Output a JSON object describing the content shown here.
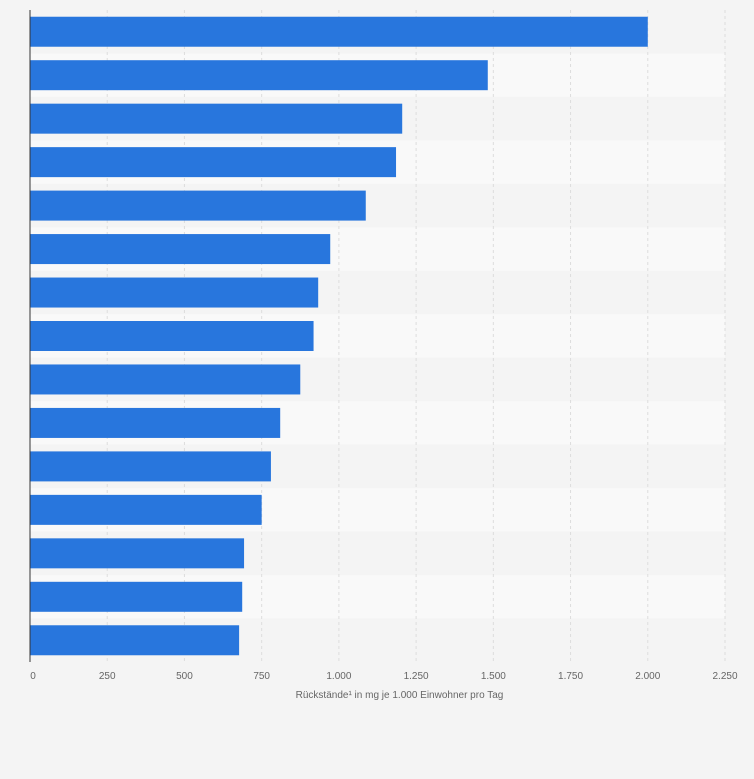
{
  "colors": {
    "bar": "#2876dd",
    "background": "#f4f4f4",
    "row_light": "#f9f9f9",
    "row_dark": "#f4f4f4",
    "grid": "#dddddd",
    "axis": "#333333"
  },
  "chart_data": {
    "type": "bar",
    "orientation": "horizontal",
    "title": "",
    "xlabel": "Rückstände¹ in mg je 1.000 Einwohner pro Tag",
    "ylabel": "",
    "xlim": [
      0,
      2250
    ],
    "xticks": [
      0,
      250,
      500,
      750,
      1000,
      1250,
      1500,
      1750,
      2000,
      2250
    ],
    "xtick_labels": [
      "0",
      "250",
      "500",
      "750",
      "1.000",
      "1.250",
      "1.500",
      "1.750",
      "2.000",
      "2.250"
    ],
    "grid": true,
    "values": [
      2000,
      1482,
      1205,
      1185,
      1087,
      972,
      933,
      918,
      875,
      810,
      780,
      750,
      693,
      687,
      677
    ]
  }
}
